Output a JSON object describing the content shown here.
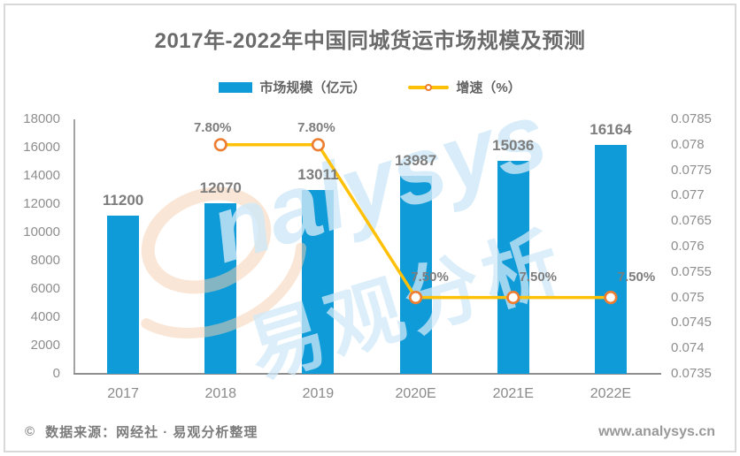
{
  "title": "2017年-2022年中国同城货运市场规模及预测",
  "legend": {
    "market_size": "市场规模（亿元）",
    "growth": "增速（%）"
  },
  "footer": {
    "copyright": "©",
    "source": "数据来源：网经社 · 易观分析整理",
    "website": "www.analysys.cn"
  },
  "watermark": {
    "latin": "nalysys",
    "cjk": "易观分析"
  },
  "colors": {
    "bar": "#0f9bd7",
    "line": "#ffc008",
    "marker_ring": "#ed7d31",
    "marker_fill": "#ffffff",
    "watermark_blue": "#cfe9f8",
    "watermark_orange": "#f7cfae"
  },
  "chart_data": {
    "type": "bar",
    "subtype": "bar+line combo, secondary right axis",
    "title": "2017年-2022年中国同城货运市场规模及预测",
    "categories": [
      "2017",
      "2018",
      "2019",
      "2020E",
      "2021E",
      "2022E"
    ],
    "series": [
      {
        "name": "市场规模（亿元）",
        "type": "bar",
        "axis": "left",
        "values": [
          11200,
          12070,
          13011,
          13987,
          15036,
          16164
        ],
        "labels": [
          "11200",
          "12070",
          "13011",
          "13987",
          "15036",
          "16164"
        ]
      },
      {
        "name": "增速（%）",
        "type": "line",
        "axis": "right",
        "values": [
          null,
          0.078,
          0.078,
          0.075,
          0.075,
          0.075
        ],
        "labels": [
          "",
          "7.80%",
          "7.80%",
          "7.50%",
          "7.50%",
          "7.50%"
        ]
      }
    ],
    "left_axis": {
      "min": 0,
      "max": 18000,
      "step": 2000
    },
    "right_axis": {
      "min": 0.0735,
      "max": 0.0785,
      "step": 0.0005
    },
    "grid": false,
    "legend_position": "top"
  }
}
